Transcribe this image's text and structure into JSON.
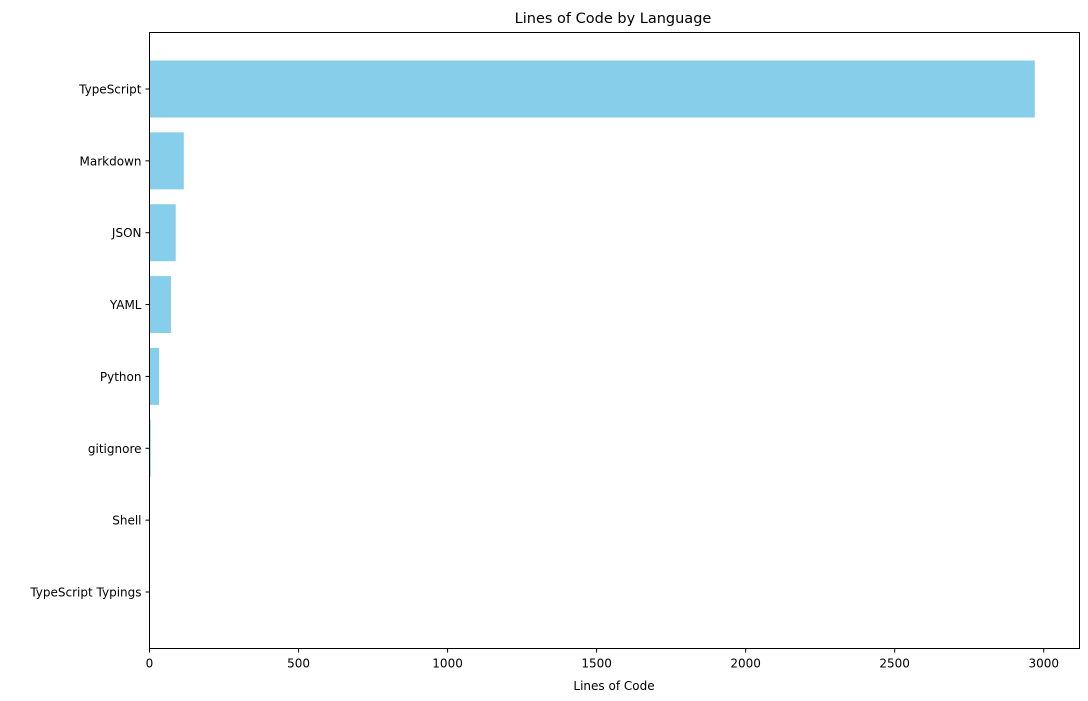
{
  "chart_data": {
    "type": "bar",
    "orientation": "horizontal",
    "title": "Lines of Code by Language",
    "xlabel": "Lines of Code",
    "ylabel": "",
    "categories": [
      "TypeScript",
      "Markdown",
      "JSON",
      "YAML",
      "Python",
      "gitignore",
      "Shell",
      "TypeScript Typings"
    ],
    "values": [
      2970,
      115,
      88,
      72,
      32,
      4,
      1,
      1
    ],
    "xlim": [
      0,
      3120
    ],
    "xticks": [
      0,
      500,
      1000,
      1500,
      2000,
      2500,
      3000
    ],
    "grid": false,
    "legend": "none",
    "bar_color": "#87CEEB"
  }
}
